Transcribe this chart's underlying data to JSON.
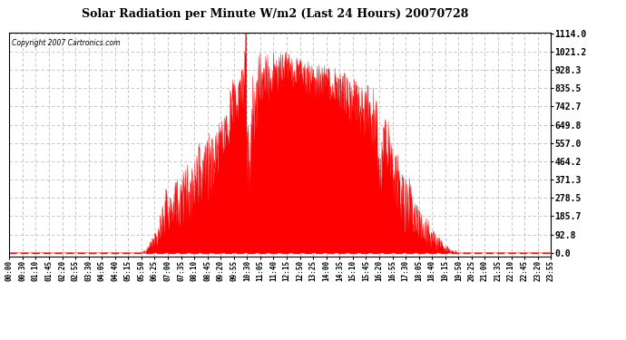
{
  "title": "Solar Radiation per Minute W/m2 (Last 24 Hours) 20070728",
  "copyright_text": "Copyright 2007 Cartronics.com",
  "background_color": "#ffffff",
  "plot_bg_color": "#ffffff",
  "fill_color": "#ff0000",
  "line_color": "#ff0000",
  "dashed_line_color": "#ff0000",
  "grid_color": "#bbbbbb",
  "y_ticks": [
    0.0,
    92.8,
    185.7,
    278.5,
    371.3,
    464.2,
    557.0,
    649.8,
    742.7,
    835.5,
    928.3,
    1021.2,
    1114.0
  ],
  "y_max": 1114.0,
  "x_tick_labels": [
    "00:00",
    "00:30",
    "01:10",
    "01:45",
    "02:20",
    "02:55",
    "03:30",
    "04:05",
    "04:40",
    "05:15",
    "05:50",
    "06:25",
    "07:00",
    "07:35",
    "08:10",
    "08:45",
    "09:20",
    "09:55",
    "10:30",
    "11:05",
    "11:40",
    "12:15",
    "12:50",
    "13:25",
    "14:00",
    "14:35",
    "15:10",
    "15:45",
    "16:20",
    "16:55",
    "17:30",
    "18:05",
    "18:40",
    "19:15",
    "19:50",
    "20:25",
    "21:00",
    "21:35",
    "22:10",
    "22:45",
    "23:20",
    "23:55"
  ]
}
